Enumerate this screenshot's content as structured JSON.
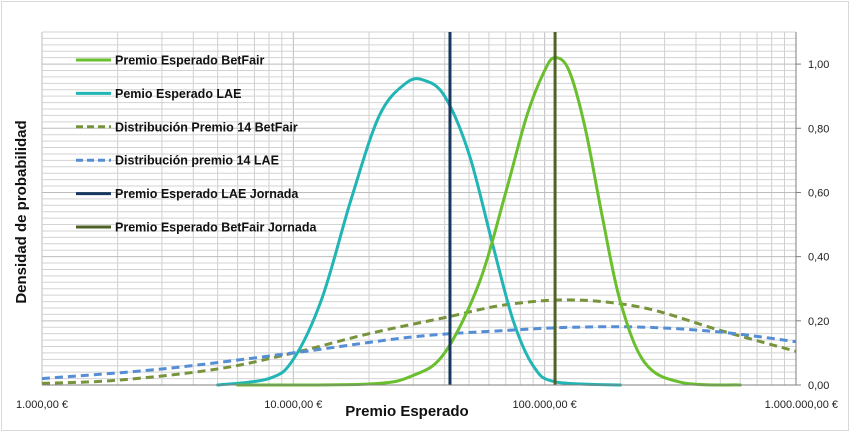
{
  "chart_data": {
    "type": "line",
    "title": "",
    "xlabel": "Premio Esperado",
    "ylabel": "Densidad de probabilidad",
    "x_scale": "log",
    "xlim": [
      1000,
      1000000
    ],
    "ylim": [
      0,
      1.1
    ],
    "x_ticks": [
      1000,
      10000,
      100000,
      1000000
    ],
    "x_tick_labels": [
      "1.000,00 €",
      "10.000,00 €",
      "100.000,00 €",
      "1.000.000,00 €"
    ],
    "y_ticks": [
      0,
      0.2,
      0.4,
      0.6,
      0.8,
      1.0
    ],
    "y_tick_labels": [
      "0,00",
      "0,20",
      "0,40",
      "0,60",
      "0,80",
      "1,00"
    ],
    "y_axis_position": "right",
    "grid": true,
    "legend_position": "top-left",
    "series": [
      {
        "name": "Premio Esperado BetFair",
        "style": "solid",
        "color": "#6abf2e",
        "points": [
          [
            6000,
            0
          ],
          [
            20000,
            0.003
          ],
          [
            30000,
            0.03
          ],
          [
            40000,
            0.1
          ],
          [
            55000,
            0.32
          ],
          [
            70000,
            0.6
          ],
          [
            85000,
            0.84
          ],
          [
            100000,
            0.98
          ],
          [
            110000,
            1.02
          ],
          [
            125000,
            0.98
          ],
          [
            145000,
            0.8
          ],
          [
            170000,
            0.52
          ],
          [
            200000,
            0.26
          ],
          [
            250000,
            0.07
          ],
          [
            350000,
            0.008
          ],
          [
            600000,
            0
          ]
        ]
      },
      {
        "name": "Pemio Esperado LAE",
        "style": "solid",
        "color": "#22b5b5",
        "points": [
          [
            5000,
            0
          ],
          [
            8000,
            0.02
          ],
          [
            10000,
            0.08
          ],
          [
            13000,
            0.27
          ],
          [
            17000,
            0.58
          ],
          [
            22000,
            0.84
          ],
          [
            28000,
            0.94
          ],
          [
            33000,
            0.95
          ],
          [
            40000,
            0.9
          ],
          [
            50000,
            0.72
          ],
          [
            62000,
            0.44
          ],
          [
            75000,
            0.2
          ],
          [
            90000,
            0.06
          ],
          [
            110000,
            0.01
          ],
          [
            200000,
            0
          ]
        ]
      },
      {
        "name": "Distribución Premio 14 BetFair",
        "style": "dashed",
        "color": "#77933c",
        "points": [
          [
            1000,
            0.005
          ],
          [
            2000,
            0.015
          ],
          [
            5000,
            0.05
          ],
          [
            10000,
            0.1
          ],
          [
            20000,
            0.16
          ],
          [
            40000,
            0.21
          ],
          [
            70000,
            0.25
          ],
          [
            130000,
            0.265
          ],
          [
            250000,
            0.24
          ],
          [
            500000,
            0.17
          ],
          [
            1000000,
            0.105
          ]
        ]
      },
      {
        "name": "Distribución premio 14 LAE",
        "style": "dashed",
        "color": "#558ed5",
        "points": [
          [
            1000,
            0.02
          ],
          [
            3000,
            0.05
          ],
          [
            10000,
            0.1
          ],
          [
            30000,
            0.15
          ],
          [
            70000,
            0.17
          ],
          [
            130000,
            0.18
          ],
          [
            250000,
            0.18
          ],
          [
            500000,
            0.165
          ],
          [
            1000000,
            0.135
          ]
        ]
      }
    ],
    "vertical_lines": [
      {
        "name": "Premio Esperado LAE Jornada",
        "x": 42000,
        "color": "#17375e"
      },
      {
        "name": "Premio Esperado BetFair Jornada",
        "x": 110000,
        "color": "#4f6228"
      }
    ]
  }
}
